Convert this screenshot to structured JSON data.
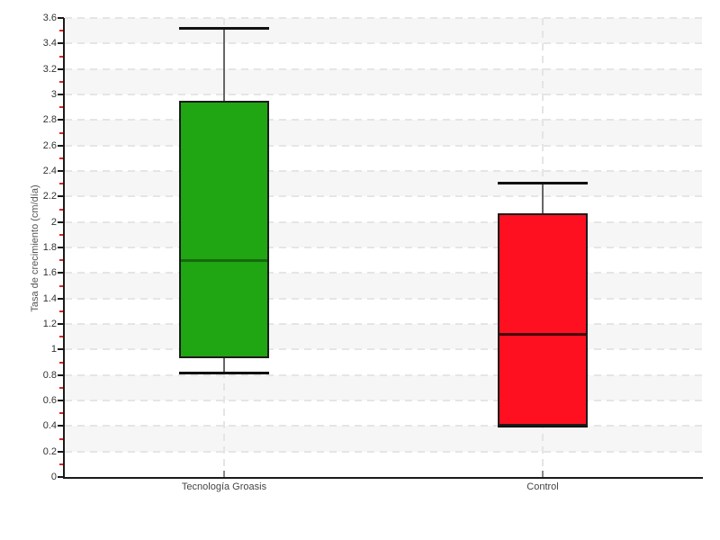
{
  "chart_data": {
    "type": "boxplot",
    "title": "",
    "xlabel": "",
    "ylabel": "Tasa de crecimiento (cm/día)",
    "ylim": [
      0,
      3.6
    ],
    "y_major_tick_step": 0.2,
    "y_minor_tick_step": 0.1,
    "legend": "none",
    "grid": {
      "horizontal_dashed_every": 0.2,
      "vertical_dashed_at_category_centers": true,
      "alternating_background_bands": true
    },
    "categories": [
      "Tecnología Groasis",
      "Control"
    ],
    "series": [
      {
        "name": "Tecnología Groasis",
        "min": 0.82,
        "q1": 0.93,
        "median": 1.7,
        "q3": 2.95,
        "max": 3.52,
        "box_color": "#20a513",
        "median_color": "#156a0b"
      },
      {
        "name": "Control",
        "min": 0.4,
        "q1": 0.4,
        "median": 1.12,
        "q3": 2.07,
        "max": 2.31,
        "box_color": "#ff1020",
        "median_color": "#43050c"
      }
    ],
    "colors": {
      "axis": "#1a1a1a",
      "major_tick": "#1a1a1a",
      "minor_tick": "#dd2626",
      "band_gray": "#f6f6f6",
      "grid_dash": "#e5e5e5",
      "whisker_stem": "#666666",
      "whisker_cap": "#111111",
      "box_border": "#1c1c1c",
      "y_tick_label": "#333333",
      "category_label": "#444444",
      "axis_title": "#555555"
    }
  }
}
